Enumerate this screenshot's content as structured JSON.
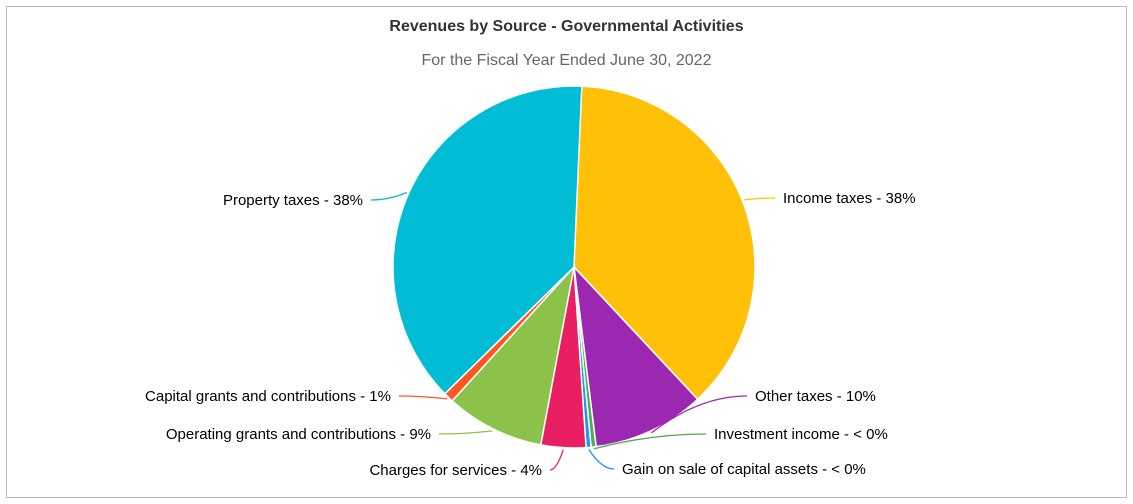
{
  "chart_data": {
    "type": "pie",
    "title": "Revenues by Source - Governmental Activities",
    "subtitle": "For the Fiscal Year Ended June 30, 2022",
    "slices": [
      {
        "label": "Income taxes - 38%",
        "value": 38.0,
        "color": "#FFC107"
      },
      {
        "label": "Other taxes - 10%",
        "value": 10.0,
        "color": "#9C27B0"
      },
      {
        "label": "Investment income - < 0%",
        "value": 0.1,
        "color": "#4CAF50"
      },
      {
        "label": "Gain on sale of capital assets - < 0%",
        "value": 0.1,
        "color": "#2196F3"
      },
      {
        "label": "Charges for services - 4%",
        "value": 4.0,
        "color": "#E91E63"
      },
      {
        "label": "Operating grants and contributions - 9%",
        "value": 8.8,
        "color": "#8BC34A"
      },
      {
        "label": "Capital grants and contributions - 1%",
        "value": 0.9,
        "color": "#FF5722"
      },
      {
        "label": "Property taxes - 38%",
        "value": 38.0,
        "color": "#00BCD4"
      }
    ]
  }
}
